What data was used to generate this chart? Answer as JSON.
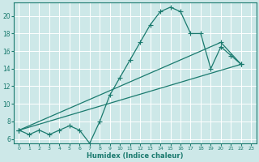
{
  "xlabel": "Humidex (Indice chaleur)",
  "bg_color": "#cde8e8",
  "grid_color": "#ffffff",
  "line_color": "#1a7a6e",
  "xlim": [
    -0.5,
    23.5
  ],
  "ylim": [
    5.5,
    21.5
  ],
  "yticks": [
    6,
    8,
    10,
    12,
    14,
    16,
    18,
    20
  ],
  "xticks": [
    0,
    1,
    2,
    3,
    4,
    5,
    6,
    7,
    8,
    9,
    10,
    11,
    12,
    13,
    14,
    15,
    16,
    17,
    18,
    19,
    20,
    21,
    22,
    23
  ],
  "line1_x": [
    0,
    1,
    2,
    3,
    4,
    5,
    6,
    7,
    8,
    9,
    10,
    11,
    12,
    13,
    14,
    15,
    16,
    17,
    18,
    19,
    20,
    21,
    22
  ],
  "line1_y": [
    7.0,
    6.5,
    7.0,
    6.5,
    7.0,
    7.5,
    7.0,
    5.5,
    8.0,
    11.0,
    13.0,
    15.0,
    17.0,
    19.0,
    20.5,
    21.0,
    20.5,
    18.0,
    18.0,
    14.0,
    16.5,
    15.5,
    14.5
  ],
  "line2_x": [
    0,
    20,
    22
  ],
  "line2_y": [
    7.0,
    17.0,
    14.5
  ],
  "line3_x": [
    0,
    22
  ],
  "line3_y": [
    7.0,
    14.5
  ]
}
